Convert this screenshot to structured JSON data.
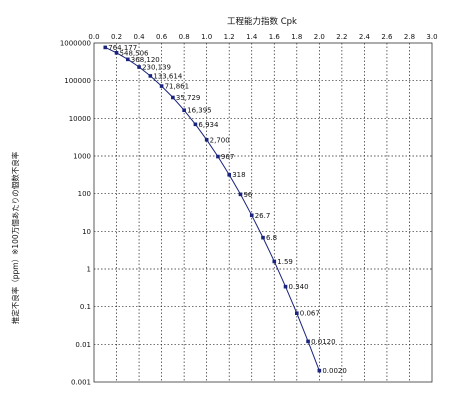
{
  "chart_data": {
    "type": "line",
    "title": "",
    "xlabel": "工程能力指数 Cpk",
    "ylabel": "推定不良率（ppm）※100万個あたりの個数不良率",
    "x_axis_position": "top",
    "xlim": [
      0.0,
      3.0
    ],
    "ylim": [
      0.001,
      1000000
    ],
    "y_scale": "log",
    "grid": true,
    "x_ticks": [
      "0.0",
      "0.2",
      "0.4",
      "0.6",
      "0.8",
      "1.0",
      "1.2",
      "1.4",
      "1.6",
      "1.8",
      "2.0",
      "2.2",
      "2.4",
      "2.6",
      "2.8",
      "3.0"
    ],
    "y_ticks": [
      "1000000",
      "100000",
      "10000",
      "1000",
      "100",
      "10",
      "1",
      "0.1",
      "0.01",
      "0.001"
    ],
    "series": [
      {
        "x": [
          0.1,
          0.2,
          0.3,
          0.4,
          0.5,
          0.6,
          0.7,
          0.8,
          0.9,
          1.0,
          1.1,
          1.2,
          1.3,
          1.4,
          1.5,
          1.6,
          1.7,
          1.8,
          1.9,
          2.0
        ],
        "values": [
          764177,
          548506,
          368120,
          230139,
          133614,
          71861,
          35729,
          16395,
          6934,
          2700,
          967,
          318,
          96,
          26.7,
          6.8,
          1.59,
          0.34,
          0.067,
          0.012,
          0.002
        ],
        "labels": [
          "764,177",
          "548,506",
          "368,120",
          "230,139",
          "133,614",
          "71,861",
          "35,729",
          "16,395",
          "6,934",
          "2,700",
          "967",
          "318",
          "96",
          "26.7",
          "6.8",
          "1.59",
          "0.340",
          "0.067",
          "0.0120",
          "0.0020"
        ]
      }
    ]
  }
}
